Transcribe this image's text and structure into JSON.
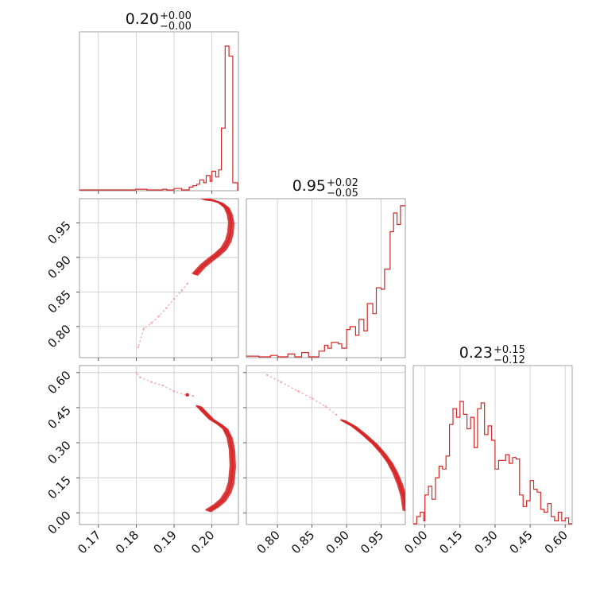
{
  "chart_data": [
    {
      "panel": "hist-param1",
      "type": "histogram",
      "title": {
        "median": "0.20",
        "plus": "+0.00",
        "minus": "−0.00"
      },
      "xlim": [
        0.165,
        0.207
      ],
      "x_ticks": [
        0.17,
        0.18,
        0.19,
        0.2
      ],
      "x_tick_labels": [
        "0.17",
        "0.18",
        "0.19",
        "0.20"
      ],
      "bins": [
        [
          0.165,
          0.0
        ],
        [
          0.1798,
          0.005
        ],
        [
          0.1828,
          0.0
        ],
        [
          0.187,
          0.005
        ],
        [
          0.188,
          0.0
        ],
        [
          0.19,
          0.01
        ],
        [
          0.192,
          0.0
        ],
        [
          0.194,
          0.02
        ],
        [
          0.195,
          0.03
        ],
        [
          0.196,
          0.04
        ],
        [
          0.1968,
          0.07
        ],
        [
          0.1978,
          0.05
        ],
        [
          0.1985,
          0.1
        ],
        [
          0.1995,
          0.06
        ],
        [
          0.2,
          0.13
        ],
        [
          0.201,
          0.09
        ],
        [
          0.2018,
          0.14
        ],
        [
          0.2025,
          0.43
        ],
        [
          0.2035,
          1.0
        ],
        [
          0.2045,
          0.93
        ],
        [
          0.2055,
          0.05
        ],
        [
          0.2068,
          0.0
        ]
      ]
    },
    {
      "panel": "hist-param2",
      "type": "histogram",
      "title": {
        "median": "0.95",
        "plus": "+0.02",
        "minus": "−0.05"
      },
      "xlim": [
        0.755,
        0.985
      ],
      "bins": [
        [
          0.755,
          0.005
        ],
        [
          0.773,
          0.0
        ],
        [
          0.79,
          0.01
        ],
        [
          0.8,
          0.0
        ],
        [
          0.815,
          0.02
        ],
        [
          0.825,
          0.0
        ],
        [
          0.835,
          0.03
        ],
        [
          0.845,
          0.0
        ],
        [
          0.86,
          0.04
        ],
        [
          0.868,
          0.08
        ],
        [
          0.873,
          0.06
        ],
        [
          0.878,
          0.1
        ],
        [
          0.888,
          0.09
        ],
        [
          0.893,
          0.06
        ],
        [
          0.9,
          0.19
        ],
        [
          0.905,
          0.21
        ],
        [
          0.913,
          0.15
        ],
        [
          0.918,
          0.26
        ],
        [
          0.925,
          0.18
        ],
        [
          0.93,
          0.37
        ],
        [
          0.938,
          0.3
        ],
        [
          0.943,
          0.48
        ],
        [
          0.95,
          0.47
        ],
        [
          0.955,
          0.61
        ],
        [
          0.963,
          0.87
        ],
        [
          0.968,
          1.0
        ],
        [
          0.973,
          0.92
        ],
        [
          0.978,
          1.05
        ],
        [
          0.985,
          1.05
        ]
      ]
    },
    {
      "panel": "hist-param3",
      "type": "histogram",
      "title": {
        "median": "0.23",
        "plus": "+0.15",
        "minus": "−0.12"
      },
      "xlim": [
        -0.05,
        0.63
      ],
      "x_ticks": [
        0.0,
        0.15,
        0.3,
        0.45,
        0.6
      ],
      "x_tick_labels": [
        "0.00",
        "0.15",
        "0.30",
        "0.45",
        "0.60"
      ],
      "bins": [
        [
          -0.05,
          0.0
        ],
        [
          -0.035,
          0.05
        ],
        [
          -0.02,
          0.08
        ],
        [
          -0.005,
          0.02
        ],
        [
          0.0,
          0.2
        ],
        [
          0.015,
          0.26
        ],
        [
          0.03,
          0.17
        ],
        [
          0.045,
          0.32
        ],
        [
          0.06,
          0.4
        ],
        [
          0.075,
          0.38
        ],
        [
          0.09,
          0.47
        ],
        [
          0.105,
          0.69
        ],
        [
          0.12,
          0.8
        ],
        [
          0.135,
          0.74
        ],
        [
          0.15,
          0.85
        ],
        [
          0.165,
          0.76
        ],
        [
          0.18,
          0.66
        ],
        [
          0.195,
          0.74
        ],
        [
          0.21,
          0.53
        ],
        [
          0.225,
          0.8
        ],
        [
          0.24,
          0.84
        ],
        [
          0.255,
          0.62
        ],
        [
          0.27,
          0.68
        ],
        [
          0.285,
          0.58
        ],
        [
          0.3,
          0.38
        ],
        [
          0.315,
          0.44
        ],
        [
          0.33,
          0.44
        ],
        [
          0.345,
          0.48
        ],
        [
          0.36,
          0.42
        ],
        [
          0.375,
          0.46
        ],
        [
          0.39,
          0.45
        ],
        [
          0.405,
          0.2
        ],
        [
          0.42,
          0.12
        ],
        [
          0.435,
          0.16
        ],
        [
          0.45,
          0.3
        ],
        [
          0.465,
          0.24
        ],
        [
          0.48,
          0.22
        ],
        [
          0.495,
          0.1
        ],
        [
          0.51,
          0.08
        ],
        [
          0.525,
          0.14
        ],
        [
          0.54,
          0.05
        ],
        [
          0.555,
          0.02
        ],
        [
          0.57,
          0.08
        ],
        [
          0.585,
          0.02
        ],
        [
          0.6,
          0.04
        ],
        [
          0.615,
          0.0
        ]
      ]
    },
    {
      "panel": "joint-param1-param2",
      "type": "scatter",
      "xlim": [
        0.165,
        0.207
      ],
      "ylim": [
        0.755,
        0.985
      ],
      "y_ticks": [
        0.8,
        0.85,
        0.9,
        0.95
      ],
      "y_tick_labels": [
        "0.80",
        "0.85",
        "0.90",
        "0.95"
      ],
      "ridge": [
        [
          0.1975,
          0.985
        ],
        [
          0.2,
          0.983
        ],
        [
          0.2022,
          0.979
        ],
        [
          0.2038,
          0.972
        ],
        [
          0.2046,
          0.962
        ],
        [
          0.205,
          0.95
        ],
        [
          0.2048,
          0.936
        ],
        [
          0.2042,
          0.924
        ],
        [
          0.203,
          0.913
        ],
        [
          0.2012,
          0.904
        ],
        [
          0.1995,
          0.897
        ],
        [
          0.1975,
          0.888
        ],
        [
          0.1955,
          0.876
        ]
      ],
      "trail": [
        [
          0.1935,
          0.862
        ],
        [
          0.192,
          0.852
        ],
        [
          0.19,
          0.84
        ],
        [
          0.188,
          0.827
        ],
        [
          0.186,
          0.815
        ],
        [
          0.184,
          0.805
        ],
        [
          0.182,
          0.797
        ],
        [
          0.1805,
          0.77
        ]
      ]
    },
    {
      "panel": "joint-param1-param3",
      "type": "scatter",
      "xlim": [
        0.165,
        0.207
      ],
      "ylim": [
        -0.05,
        0.63
      ],
      "y_ticks": [
        0.0,
        0.15,
        0.3,
        0.45,
        0.6
      ],
      "y_tick_labels": [
        "0.00",
        "0.15",
        "0.30",
        "0.45",
        "0.60"
      ],
      "ridge": [
        [
          0.1965,
          0.455
        ],
        [
          0.198,
          0.43
        ],
        [
          0.1998,
          0.4
        ],
        [
          0.2018,
          0.38
        ],
        [
          0.2034,
          0.36
        ],
        [
          0.2046,
          0.32
        ],
        [
          0.2052,
          0.27
        ],
        [
          0.2054,
          0.2
        ],
        [
          0.205,
          0.13
        ],
        [
          0.2042,
          0.09
        ],
        [
          0.2028,
          0.055
        ],
        [
          0.201,
          0.03
        ],
        [
          0.199,
          0.01
        ]
      ],
      "trail": [
        [
          0.195,
          0.5
        ],
        [
          0.193,
          0.505
        ],
        [
          0.19,
          0.52
        ],
        [
          0.187,
          0.545
        ],
        [
          0.184,
          0.56
        ],
        [
          0.181,
          0.58
        ],
        [
          0.18,
          0.6
        ]
      ],
      "marks": [
        [
          0.1935,
          0.505
        ]
      ]
    },
    {
      "panel": "joint-param2-param3",
      "type": "scatter",
      "xlim": [
        0.755,
        0.985
      ],
      "ylim": [
        -0.05,
        0.63
      ],
      "x_ticks": [
        0.8,
        0.85,
        0.9,
        0.95
      ],
      "x_tick_labels": [
        "0.80",
        "0.85",
        "0.90",
        "0.95"
      ],
      "y_ticks": [
        0.0,
        0.15,
        0.3,
        0.45,
        0.6
      ],
      "ridge": [
        [
          0.895,
          0.395
        ],
        [
          0.91,
          0.37
        ],
        [
          0.925,
          0.335
        ],
        [
          0.94,
          0.295
        ],
        [
          0.952,
          0.255
        ],
        [
          0.962,
          0.215
        ],
        [
          0.97,
          0.17
        ],
        [
          0.977,
          0.12
        ],
        [
          0.982,
          0.07
        ],
        [
          0.985,
          0.01
        ]
      ],
      "trail": [
        [
          0.785,
          0.59
        ],
        [
          0.805,
          0.56
        ],
        [
          0.83,
          0.52
        ],
        [
          0.85,
          0.49
        ],
        [
          0.87,
          0.455
        ],
        [
          0.885,
          0.42
        ]
      ]
    }
  ]
}
